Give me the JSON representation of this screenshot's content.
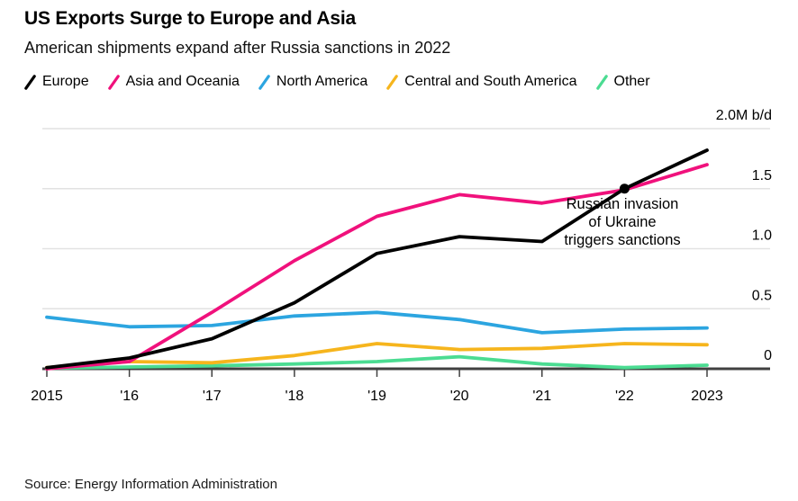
{
  "header": {
    "title": "US Exports Surge to Europe and Asia",
    "subtitle": "American shipments expand after Russia sanctions in 2022"
  },
  "legend": {
    "items": [
      {
        "label": "Europe",
        "color": "#000000"
      },
      {
        "label": "Asia and Oceania",
        "color": "#F0117C"
      },
      {
        "label": "North America",
        "color": "#2CA5E0"
      },
      {
        "label": "Central and South America",
        "color": "#F6B51D"
      },
      {
        "label": "Other",
        "color": "#4BDC92"
      }
    ]
  },
  "chart_data": {
    "type": "line",
    "title": "US Exports Surge to Europe and Asia",
    "subtitle": "American shipments expand after Russia sanctions in 2022",
    "unit_label": "b/d",
    "x": [
      2015,
      2016,
      2017,
      2018,
      2019,
      2020,
      2021,
      2022,
      2023
    ],
    "x_tick_labels": [
      "2015",
      "'16",
      "'17",
      "'18",
      "'19",
      "'20",
      "'21",
      "'22",
      "2023"
    ],
    "y_ticks": [
      0,
      0.5,
      1.0,
      1.5,
      2.0
    ],
    "y_tick_labels": [
      "0",
      "0.5",
      "1.0",
      "1.5",
      "2.0M b/d"
    ],
    "ylim": [
      0,
      2.05
    ],
    "grid": "horizontal-light-gray",
    "legend_position": "top",
    "series": [
      {
        "name": "Europe",
        "color": "#000000",
        "values": [
          0.01,
          0.09,
          0.25,
          0.55,
          0.96,
          1.1,
          1.06,
          1.5,
          1.82
        ]
      },
      {
        "name": "Asia and Oceania",
        "color": "#F0117C",
        "values": [
          0.0,
          0.06,
          0.47,
          0.9,
          1.27,
          1.45,
          1.38,
          1.49,
          1.7
        ]
      },
      {
        "name": "North America",
        "color": "#2CA5E0",
        "values": [
          0.43,
          0.35,
          0.36,
          0.44,
          0.47,
          0.41,
          0.3,
          0.33,
          0.34
        ]
      },
      {
        "name": "Central and South America",
        "color": "#F6B51D",
        "values": [
          0.01,
          0.06,
          0.05,
          0.11,
          0.21,
          0.16,
          0.17,
          0.21,
          0.2
        ]
      },
      {
        "name": "Other",
        "color": "#4BDC92",
        "values": [
          0.005,
          0.015,
          0.025,
          0.04,
          0.06,
          0.1,
          0.04,
          0.01,
          0.03
        ]
      }
    ],
    "annotation": {
      "lines": [
        "Russian invasion",
        "of Ukraine",
        "triggers sanctions"
      ],
      "marker": {
        "series": "Europe",
        "x": 2022,
        "y": 1.5,
        "color": "#000000"
      }
    }
  },
  "footer": {
    "source": "Source: Energy Information Administration"
  },
  "colors": {
    "background": "#ffffff",
    "gridline": "#E2E2E2",
    "axis": "#404040",
    "text": "#000000"
  }
}
